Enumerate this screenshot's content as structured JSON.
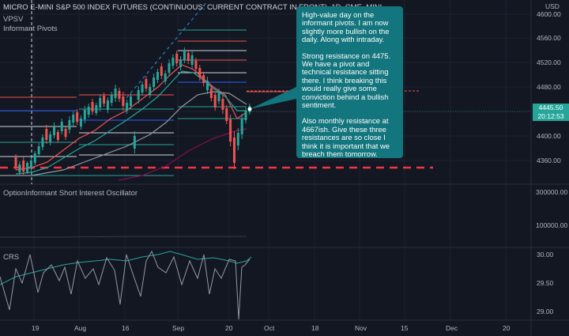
{
  "header": {
    "title": "MICRO E-MINI S&P 500 INDEX FUTURES (CONTINUOUS: CURRENT CONTRACT IN FRONT), 1D, CME_MINI",
    "indicators": [
      "VPSV",
      "Informant Pivots"
    ]
  },
  "panels": {
    "oscillator_label": "OptionInformant Short Interest Oscillator",
    "crs_label": "CRS"
  },
  "currency": "USD",
  "price_axis": [
    "4600.00",
    "4560.00",
    "4520.00",
    "4480.00",
    "4400.00",
    "4360.00"
  ],
  "osc_axis": [
    "300000.00",
    "100000.00"
  ],
  "crs_axis": [
    "30.00",
    "29.50",
    "29.00"
  ],
  "time_axis": [
    "19",
    "Aug",
    "16",
    "Sep",
    "20",
    "Oct",
    "18",
    "Nov",
    "15",
    "Dec",
    "20"
  ],
  "last_price": {
    "price": "4445.50",
    "countdown": "20:12:53"
  },
  "callout": {
    "p1": "High-value day on the informant pivots. I am now slightly more bullish on the daily. Along with intraday.",
    "p2": "Strong resistance on 4475. We have a pivot and technical resistance sitting there. I think breaking this would really give some conviction behind a bullish sentiment.",
    "p3": "Also monthly resistance at 4667ish. Give these three resistances are so close I think it is important that we breach them tomorrow."
  },
  "colors": {
    "background": "#131722",
    "up": "#26a69a",
    "down": "#ef5350",
    "callout": "#13757d"
  }
}
